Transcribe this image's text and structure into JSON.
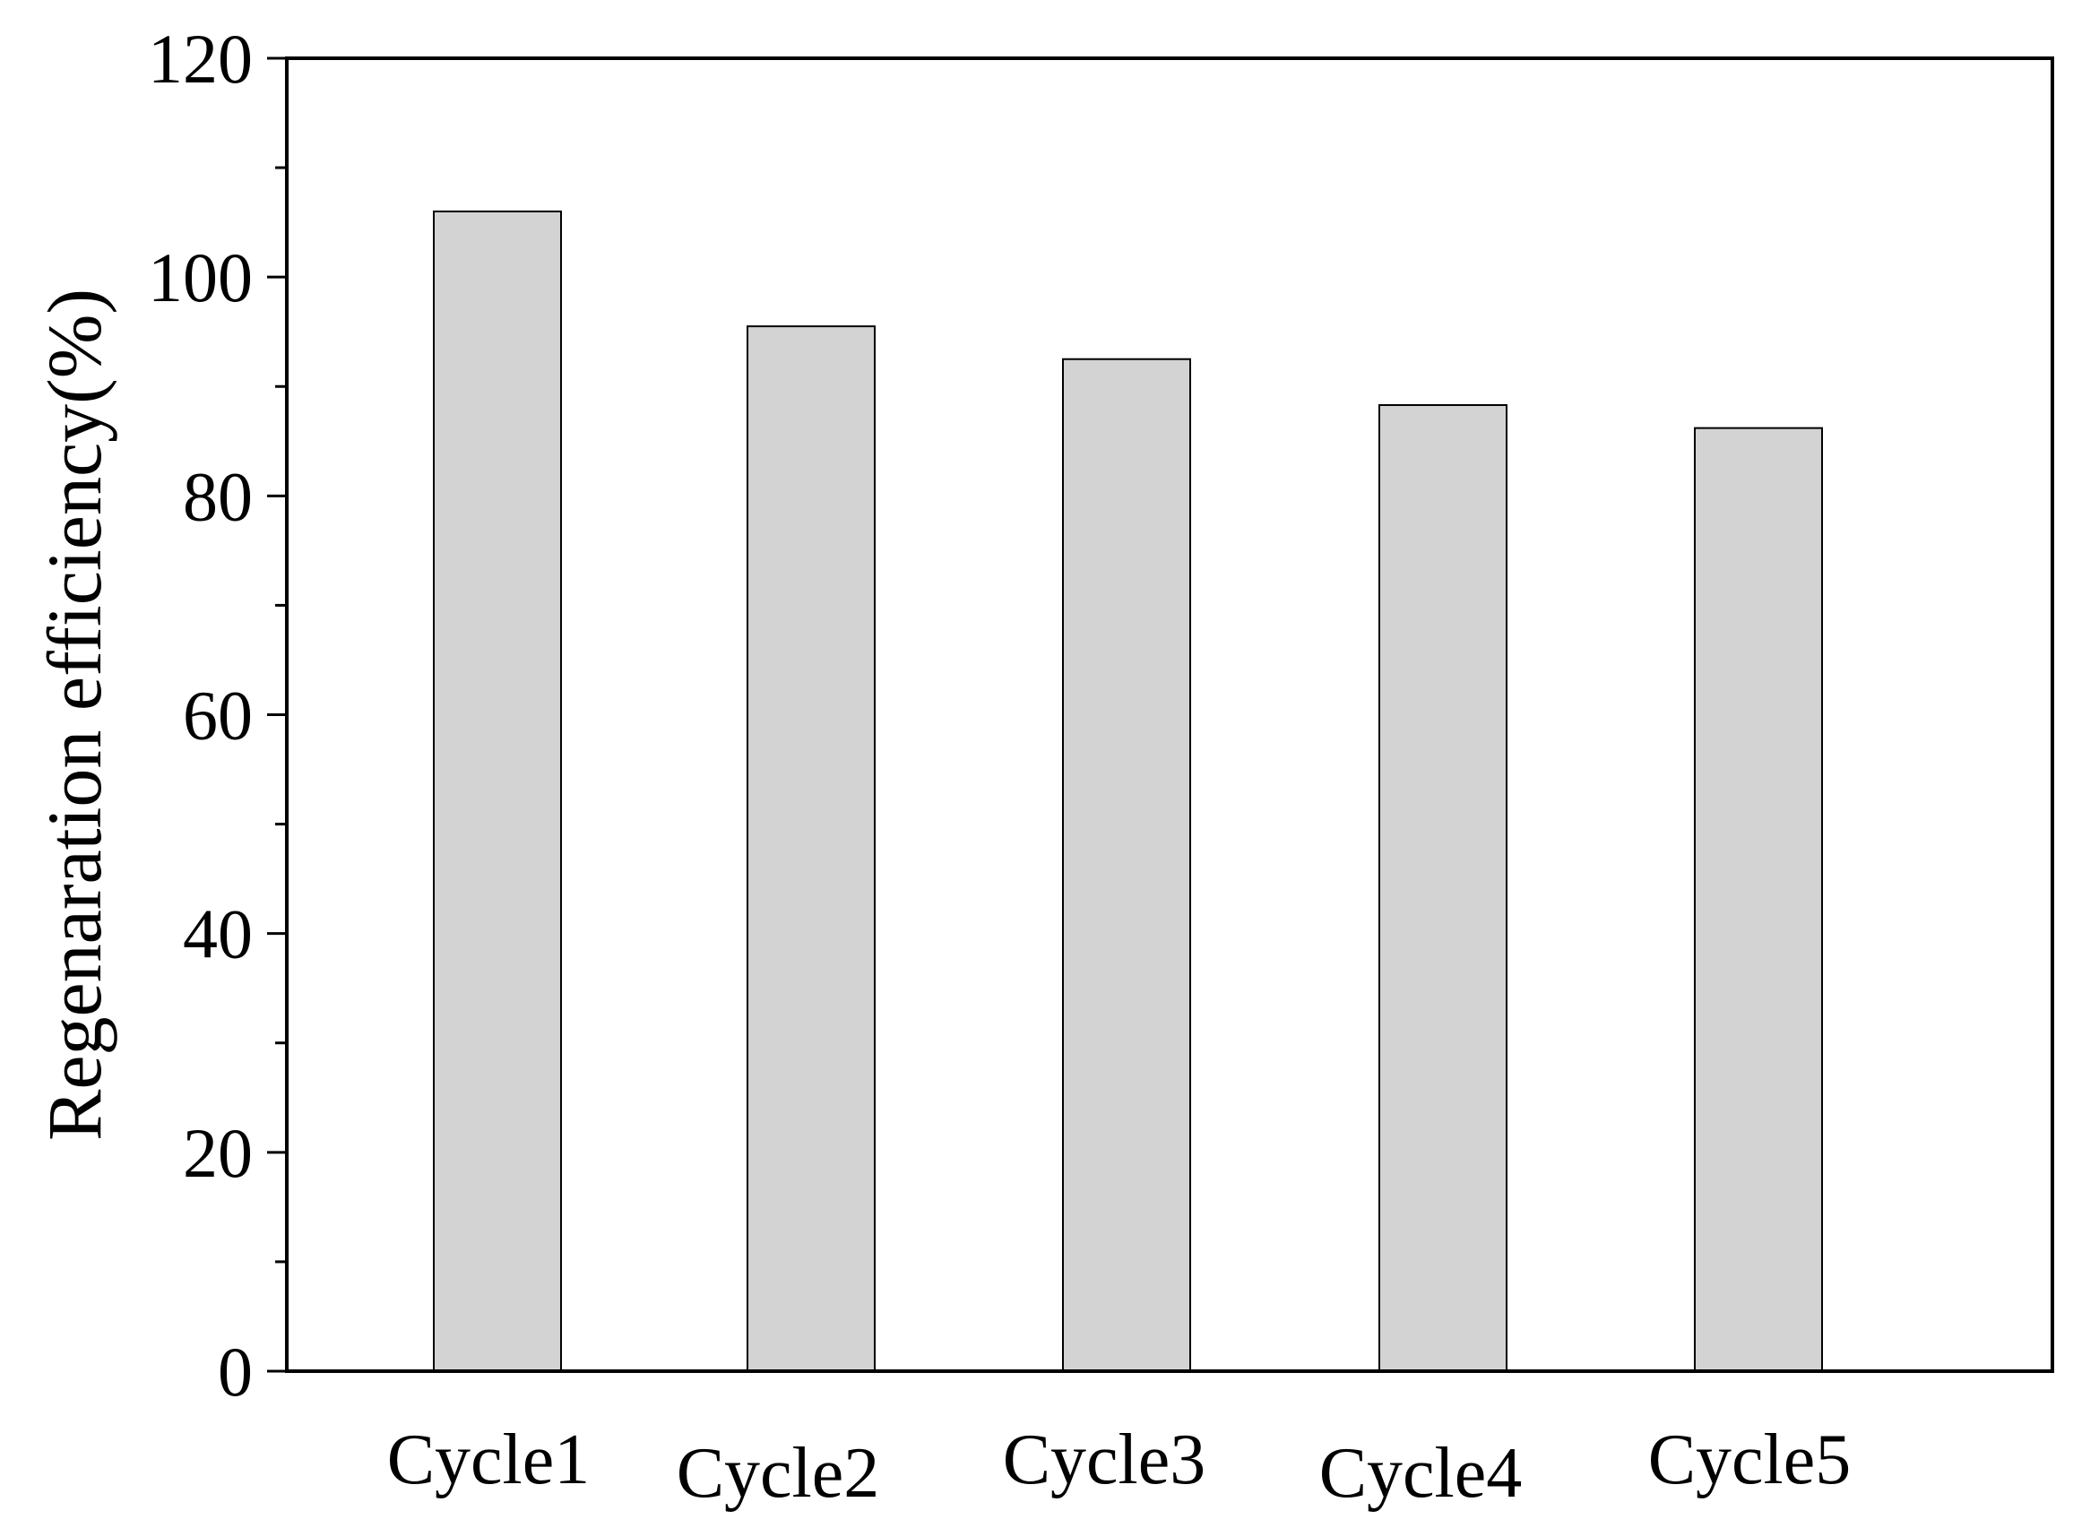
{
  "chart_data": {
    "type": "bar",
    "categories": [
      "Cycle1",
      "Cycle2",
      "Cycle3",
      "Cycle4",
      "Cycle5"
    ],
    "values": [
      106,
      95.5,
      92.5,
      88.3,
      86.2
    ],
    "title": "",
    "xlabel": "",
    "ylabel": "Regenaration efficiency(%)",
    "ylim": [
      0,
      120
    ],
    "yticks": [
      "0",
      "20",
      "40",
      "60",
      "80",
      "100",
      "120"
    ],
    "ytick_values": [
      0,
      20,
      40,
      60,
      80,
      100,
      120
    ],
    "grid": false,
    "legend": "none",
    "colors": {
      "bar_fill": "#d3d3d3",
      "bar_stroke": "#000000",
      "axis": "#000000"
    }
  }
}
